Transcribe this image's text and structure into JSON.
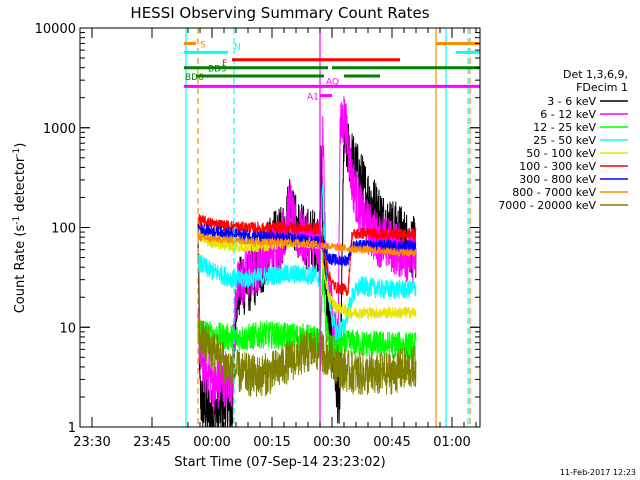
{
  "chart_data": {
    "type": "line",
    "title": "HESSI Observing Summary Count Rates",
    "xlabel": "Start Time (07-Sep-14 23:23:02)",
    "ylabel": "Count Rate (s⁻¹ detector⁻¹)",
    "ylabel_parts": {
      "a": "Count Rate (s",
      "b": "-1",
      "c": " detector",
      "d": "-1",
      "e": ")"
    },
    "yscale": "log",
    "ylim": [
      1,
      10000
    ],
    "y_ticks": [
      {
        "v": 1,
        "label": "1"
      },
      {
        "v": 10,
        "label": "10"
      },
      {
        "v": 100,
        "label": "100"
      },
      {
        "v": 1000,
        "label": "1000"
      },
      {
        "v": 10000,
        "label": "10000"
      }
    ],
    "xlim_min": [
      -26,
      74
    ],
    "x_ticks": [
      {
        "m": 7,
        "label": "23:30"
      },
      {
        "m": 22,
        "label": "23:45"
      },
      {
        "m": 37,
        "label": "00:00"
      },
      {
        "m": 52,
        "label": "00:15"
      },
      {
        "m": 67,
        "label": "00:30"
      },
      {
        "m": 82,
        "label": "00:45"
      },
      {
        "m": 97,
        "label": "01:00"
      }
    ],
    "legend": {
      "header": [
        "Det 1,3,6,9,",
        "FDecim 1"
      ],
      "entries": [
        {
          "label": "3 - 6 keV",
          "color": "#000000"
        },
        {
          "label": "6 - 12 keV",
          "color": "#ff00ff"
        },
        {
          "label": "12 - 25 keV",
          "color": "#00ff00"
        },
        {
          "label": "25 - 50 keV",
          "color": "#00ffff"
        },
        {
          "label": "50 - 100 keV",
          "color": "#e6e600"
        },
        {
          "label": "100 - 300 keV",
          "color": "#ff0000"
        },
        {
          "label": "300 - 800 keV",
          "color": "#0000ff"
        },
        {
          "label": "800 - 7000 keV",
          "color": "#ff8c00"
        },
        {
          "label": "7000 - 20000 keV",
          "color": "#808000"
        }
      ]
    },
    "flag_bars": [
      {
        "label": "S",
        "color": "#ff8c00",
        "value": 7000,
        "segments": [
          [
            0,
            3
          ],
          [
            63,
            74
          ]
        ]
      },
      {
        "label": "N",
        "color": "#00ffff",
        "value": 5700,
        "segments": [
          [
            0,
            11
          ],
          [
            68,
            74
          ]
        ]
      },
      {
        "label": "F",
        "color": "#ff0000",
        "value": 4800,
        "segments": [
          [
            12,
            54
          ]
        ]
      },
      {
        "label": "BD9",
        "color": "#008000",
        "value": 4000,
        "segments": [
          [
            0,
            36
          ],
          [
            37,
            74
          ]
        ]
      },
      {
        "label": "BD6",
        "color": "#008000",
        "value": 3300,
        "segments": [
          [
            3,
            35
          ],
          [
            40,
            49
          ]
        ]
      },
      {
        "label": "AQ",
        "color": "#ff00ff",
        "value": 2600,
        "segments": [
          [
            0,
            74
          ]
        ]
      },
      {
        "label": "A1",
        "color": "#ff00ff",
        "value": 2100,
        "segments": [
          [
            34,
            37
          ]
        ]
      }
    ],
    "vlines": [
      {
        "m": 0.5,
        "color": "#00ffff",
        "style": "solid"
      },
      {
        "m": 3.5,
        "color": "#ff8c00",
        "style": "dash"
      },
      {
        "m": 12.5,
        "color": "#00ffff",
        "style": "dash"
      },
      {
        "m": 34,
        "color": "#ff00ff",
        "style": "solid"
      },
      {
        "m": 63,
        "color": "#ff8c00",
        "style": "solid"
      },
      {
        "m": 65.5,
        "color": "#00ffff",
        "style": "solid"
      },
      {
        "m": 71,
        "color": "#00ffff",
        "style": "dash"
      },
      {
        "m": 71.5,
        "color": "#ff8c00",
        "style": "dash"
      }
    ],
    "data_span_min": [
      3.5,
      58
    ],
    "series": [
      {
        "name": "3 - 6 keV",
        "color": "#000000",
        "noise": 0.32,
        "points": [
          [
            3.5,
            100
          ],
          [
            4,
            2
          ],
          [
            5,
            1.5
          ],
          [
            6,
            1.5
          ],
          [
            7,
            1.2
          ],
          [
            8,
            1.5
          ],
          [
            9,
            1.5
          ],
          [
            10,
            1.8
          ],
          [
            12,
            1.3
          ],
          [
            13,
            20
          ],
          [
            14,
            25
          ],
          [
            17,
            30
          ],
          [
            20,
            45
          ],
          [
            22,
            70
          ],
          [
            24,
            75
          ],
          [
            25.5,
            110
          ],
          [
            26.5,
            200
          ],
          [
            27.5,
            115
          ],
          [
            30,
            80
          ],
          [
            33,
            75
          ],
          [
            34,
            72
          ],
          [
            34.3,
            500
          ],
          [
            34.8,
            70
          ],
          [
            36,
            12
          ],
          [
            37,
            6
          ],
          [
            38,
            3
          ],
          [
            39,
            1.5
          ],
          [
            40,
            800
          ],
          [
            41,
            600
          ],
          [
            42,
            470
          ],
          [
            44,
            300
          ],
          [
            46,
            200
          ],
          [
            48,
            150
          ],
          [
            50,
            110
          ],
          [
            52,
            95
          ],
          [
            54,
            85
          ],
          [
            56,
            70
          ],
          [
            58,
            60
          ]
        ]
      },
      {
        "name": "6 - 12 keV",
        "color": "#ff00ff",
        "noise": 0.28,
        "points": [
          [
            3.5,
            15
          ],
          [
            4,
            5
          ],
          [
            5,
            4
          ],
          [
            7,
            3
          ],
          [
            8,
            2.5
          ],
          [
            10,
            3
          ],
          [
            12,
            3
          ],
          [
            13,
            22
          ],
          [
            14,
            28
          ],
          [
            18,
            40
          ],
          [
            21,
            60
          ],
          [
            24,
            70
          ],
          [
            25.5,
            110
          ],
          [
            26.5,
            170
          ],
          [
            27.5,
            100
          ],
          [
            30,
            75
          ],
          [
            33,
            65
          ],
          [
            34.2,
            60
          ],
          [
            34.7,
            1400
          ],
          [
            35.2,
            80
          ],
          [
            36,
            30
          ],
          [
            37,
            15
          ],
          [
            38,
            8
          ],
          [
            38.5,
            6
          ],
          [
            39,
            900
          ],
          [
            40,
            1300
          ],
          [
            41,
            700
          ],
          [
            42,
            300
          ],
          [
            44,
            150
          ],
          [
            46,
            100
          ],
          [
            48,
            80
          ],
          [
            50,
            70
          ],
          [
            52,
            65
          ],
          [
            55,
            55
          ],
          [
            58,
            50
          ]
        ]
      },
      {
        "name": "12 - 25 keV",
        "color": "#00ff00",
        "noise": 0.14,
        "points": [
          [
            3.5,
            10
          ],
          [
            6,
            8.5
          ],
          [
            10,
            8
          ],
          [
            15,
            7.8
          ],
          [
            20,
            8.5
          ],
          [
            25,
            8.2
          ],
          [
            30,
            8
          ],
          [
            33,
            7.5
          ],
          [
            34,
            7
          ],
          [
            34.8,
            45
          ],
          [
            35.3,
            12
          ],
          [
            36,
            8
          ],
          [
            37,
            6
          ],
          [
            39,
            6.5
          ],
          [
            42,
            7
          ],
          [
            45,
            6.8
          ],
          [
            50,
            6.7
          ],
          [
            55,
            6.6
          ],
          [
            58,
            6.5
          ]
        ]
      },
      {
        "name": "25 - 50 keV",
        "color": "#00ffff",
        "noise": 0.1,
        "points": [
          [
            3.5,
            45
          ],
          [
            6,
            38
          ],
          [
            10,
            33
          ],
          [
            13,
            30
          ],
          [
            17,
            31
          ],
          [
            22,
            33
          ],
          [
            25,
            34
          ],
          [
            30,
            34
          ],
          [
            33,
            33
          ],
          [
            34,
            30
          ],
          [
            34.7,
            300
          ],
          [
            35.3,
            60
          ],
          [
            36,
            22
          ],
          [
            37,
            13
          ],
          [
            38,
            9
          ],
          [
            40,
            10
          ],
          [
            42,
            20
          ],
          [
            44,
            26
          ],
          [
            47,
            25
          ],
          [
            50,
            24
          ],
          [
            55,
            24
          ],
          [
            58,
            24
          ]
        ]
      },
      {
        "name": "50 - 100 keV",
        "color": "#e6e600",
        "noise": 0.06,
        "points": [
          [
            3.5,
            85
          ],
          [
            6,
            73
          ],
          [
            10,
            67
          ],
          [
            15,
            64
          ],
          [
            20,
            66
          ],
          [
            25,
            70
          ],
          [
            30,
            72
          ],
          [
            34,
            68
          ],
          [
            35,
            35
          ],
          [
            36,
            22
          ],
          [
            37,
            18
          ],
          [
            38,
            16
          ],
          [
            40,
            15
          ],
          [
            41,
            14
          ]
        ]
      },
      {
        "name": "100 - 300 keV",
        "color": "#ff0000",
        "noise": 0.06,
        "points": [
          [
            3.5,
            120
          ],
          [
            6,
            112
          ],
          [
            10,
            105
          ],
          [
            15,
            100
          ],
          [
            20,
            98
          ],
          [
            25,
            100
          ],
          [
            30,
            100
          ],
          [
            34,
            97
          ],
          [
            35,
            55
          ],
          [
            36,
            35
          ],
          [
            37,
            28
          ],
          [
            38,
            25
          ],
          [
            40,
            24
          ],
          [
            41,
            23
          ],
          [
            42,
            85
          ],
          [
            45,
            88
          ],
          [
            50,
            85
          ],
          [
            55,
            85
          ],
          [
            58,
            87
          ]
        ]
      },
      {
        "name": "300 - 800 keV",
        "color": "#0000ff",
        "noise": 0.06,
        "points": [
          [
            3.5,
            100
          ],
          [
            6,
            93
          ],
          [
            10,
            88
          ],
          [
            15,
            84
          ],
          [
            20,
            80
          ],
          [
            25,
            78
          ],
          [
            30,
            75
          ],
          [
            34,
            72
          ],
          [
            35,
            68
          ],
          [
            36,
            50
          ],
          [
            37,
            48
          ],
          [
            39,
            46
          ],
          [
            40,
            47
          ],
          [
            41,
            47
          ],
          [
            42,
            65
          ],
          [
            45,
            66
          ],
          [
            50,
            66
          ],
          [
            55,
            65
          ],
          [
            58,
            65
          ]
        ]
      },
      {
        "name": "800 - 7000 keV",
        "color": "#ff8c00",
        "noise": 0.04,
        "points": [
          [
            3.5,
            80
          ],
          [
            6,
            78
          ],
          [
            10,
            76
          ],
          [
            15,
            74
          ],
          [
            20,
            72
          ],
          [
            25,
            71
          ],
          [
            30,
            70
          ],
          [
            33,
            68
          ],
          [
            35,
            66
          ],
          [
            40,
            62
          ],
          [
            45,
            60
          ],
          [
            50,
            58
          ],
          [
            55,
            56
          ],
          [
            58,
            55
          ]
        ]
      },
      {
        "name": "7000 - 20000 keV",
        "color": "#808000",
        "noise": 0.22,
        "points": [
          [
            3.5,
            9
          ],
          [
            5,
            7
          ],
          [
            8,
            5.5
          ],
          [
            11,
            4
          ],
          [
            14,
            3.5
          ],
          [
            18,
            3.2
          ],
          [
            22,
            3.5
          ],
          [
            26,
            4.5
          ],
          [
            30,
            5.5
          ],
          [
            33,
            6
          ],
          [
            35,
            5.5
          ],
          [
            37,
            5
          ],
          [
            39,
            4
          ],
          [
            41,
            3.6
          ],
          [
            44,
            3.4
          ],
          [
            48,
            3.3
          ],
          [
            52,
            3.5
          ],
          [
            55,
            3.8
          ],
          [
            58,
            4
          ]
        ]
      }
    ],
    "footer_date": "11-Feb-2017 12:23"
  }
}
